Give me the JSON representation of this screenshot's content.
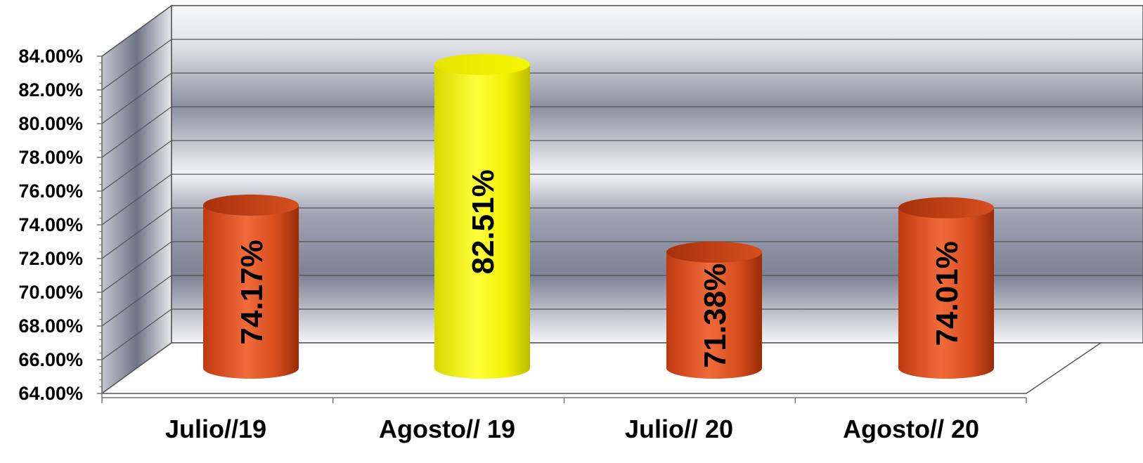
{
  "chart_data": {
    "type": "bar",
    "style": "3d-cylinder",
    "categories": [
      "Julio//19",
      "Agosto// 19",
      "Julio// 20",
      "Agosto// 20"
    ],
    "values": [
      74.17,
      82.51,
      71.38,
      74.01
    ],
    "data_labels": [
      "74.17%",
      "82.51%",
      "71.38%",
      "74.01%"
    ],
    "ylim": [
      64,
      84
    ],
    "y_ticks": [
      "64.00%",
      "66.00%",
      "68.00%",
      "70.00%",
      "72.00%",
      "74.00%",
      "76.00%",
      "78.00%",
      "80.00%",
      "82.00%",
      "84.00%"
    ],
    "title": "",
    "xlabel": "",
    "ylabel": "",
    "grid": true,
    "legend": "none",
    "colors": {
      "bar": "#e04a1c",
      "highlight_bar": "#f2f200",
      "wall_light": "#f4f5f8",
      "wall_dark": "#7d8294"
    }
  }
}
